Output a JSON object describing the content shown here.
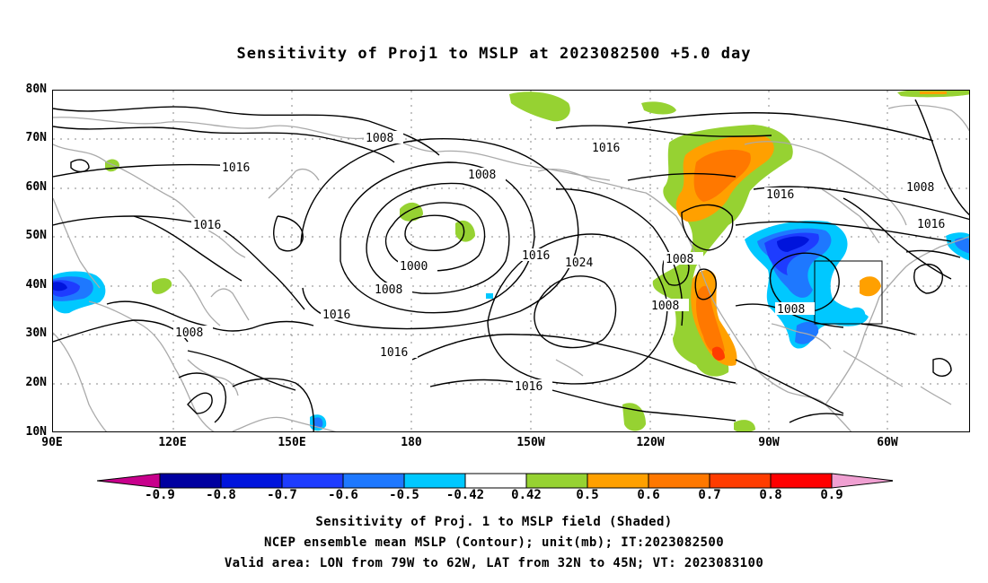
{
  "title": "Sensitivity of Proj1 to MSLP at 2023082500 +5.0 day",
  "lat_labels": [
    "80N",
    "70N",
    "60N",
    "50N",
    "40N",
    "30N",
    "20N",
    "10N"
  ],
  "lon_labels": [
    "90E",
    "120E",
    "150E",
    "180",
    "150W",
    "120W",
    "90W",
    "60W"
  ],
  "contour_labels": {
    "c1008_a": "1008",
    "c1016_a": "1016",
    "c1016_b": "1016",
    "c1008_b": "1008",
    "c1000": "1000",
    "c1008_c": "1008",
    "c1016_c": "1016",
    "c1008_d": "1008",
    "c1016_d": "1016",
    "c1016_e": "1016",
    "c1024": "1024",
    "c1016_f": "1016",
    "c1016_g": "1016",
    "c1008_e": "1008",
    "c1008_f": "1008",
    "c1016_h": "1016",
    "c1008_g": "1008",
    "c1008_h": "1008",
    "c1016_i": "1016"
  },
  "colorbar": {
    "labels": [
      "-0.9",
      "-0.8",
      "-0.7",
      "-0.6",
      "-0.5",
      "-0.42",
      "0.42",
      "0.5",
      "0.6",
      "0.7",
      "0.8",
      "0.9"
    ],
    "colors": [
      "#c8008c",
      "#0000a0",
      "#0014dc",
      "#1e3cff",
      "#1e78ff",
      "#00c8ff",
      "#ffffff",
      "#96d232",
      "#ffa000",
      "#ff7800",
      "#ff3c00",
      "#ff0000",
      "#f0a0d2"
    ]
  },
  "shading_colors": {
    "green": "#96d232",
    "orange": "#ffa000",
    "dark_orange": "#ff7800",
    "red": "#ff3c00",
    "cyan": "#00c8ff",
    "light_blue": "#1e78ff",
    "blue": "#1e3cff",
    "dark_blue": "#0014dc"
  },
  "captions": [
    "Sensitivity of Proj. 1 to MSLP field (Shaded)",
    "NCEP ensemble mean MSLP (Contour); unit(mb); IT:2023082500",
    "Valid area: LON from 79W to 62W, LAT from 32N to 45N; VT: 2023083100"
  ]
}
